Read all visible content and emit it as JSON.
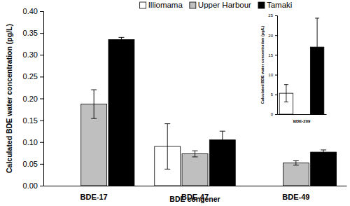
{
  "chart_data": [
    {
      "type": "bar",
      "x_label": "BDE congener",
      "y_label": "Calculated BDE water concentration (pg/L)",
      "categories": [
        "BDE-17",
        "BDE-47",
        "BDE-49"
      ],
      "series": [
        {
          "name": "Illiomama",
          "color": "#ffffff",
          "values": [
            null,
            0.09,
            null
          ],
          "errors": [
            null,
            0.052,
            null
          ]
        },
        {
          "name": "Upper Harbour",
          "color": "#bfbfbf",
          "values": [
            0.187,
            0.073,
            0.052
          ],
          "errors": [
            0.033,
            0.007,
            0.005
          ]
        },
        {
          "name": "Tamaki",
          "color": "#000000",
          "values": [
            0.335,
            0.105,
            0.077
          ],
          "errors": [
            0.005,
            0.02,
            0.005
          ]
        }
      ],
      "ylim": [
        0,
        0.4
      ],
      "yticks": [
        {
          "value": 0,
          "label": "0.00"
        },
        {
          "value": 0.05,
          "label": "0.05"
        },
        {
          "value": 0.1,
          "label": "0.10"
        },
        {
          "value": 0.15,
          "label": "0.15"
        },
        {
          "value": 0.2,
          "label": "0.20"
        },
        {
          "value": 0.25,
          "label": "0.25"
        },
        {
          "value": 0.3,
          "label": "0.30"
        },
        {
          "value": 0.35,
          "label": "0.35"
        },
        {
          "value": 0.4,
          "label": "0.40"
        }
      ],
      "legend": "top",
      "grid": false
    },
    {
      "type": "bar",
      "y_label": "Calculated BDE water concentration (pg/L)",
      "categories": [
        "BDE-209"
      ],
      "series": [
        {
          "color": "#ffffff",
          "values": [
            5.3
          ],
          "errors": [
            2.2
          ]
        },
        {
          "color": "#bfbfbf",
          "values": [
            null
          ],
          "errors": [
            null
          ]
        },
        {
          "color": "#000000",
          "values": [
            17
          ],
          "errors": [
            7.3
          ]
        }
      ],
      "ylim": [
        0,
        25
      ],
      "yticks": [
        0,
        5,
        10,
        15,
        20,
        25
      ],
      "grid": false
    }
  ]
}
